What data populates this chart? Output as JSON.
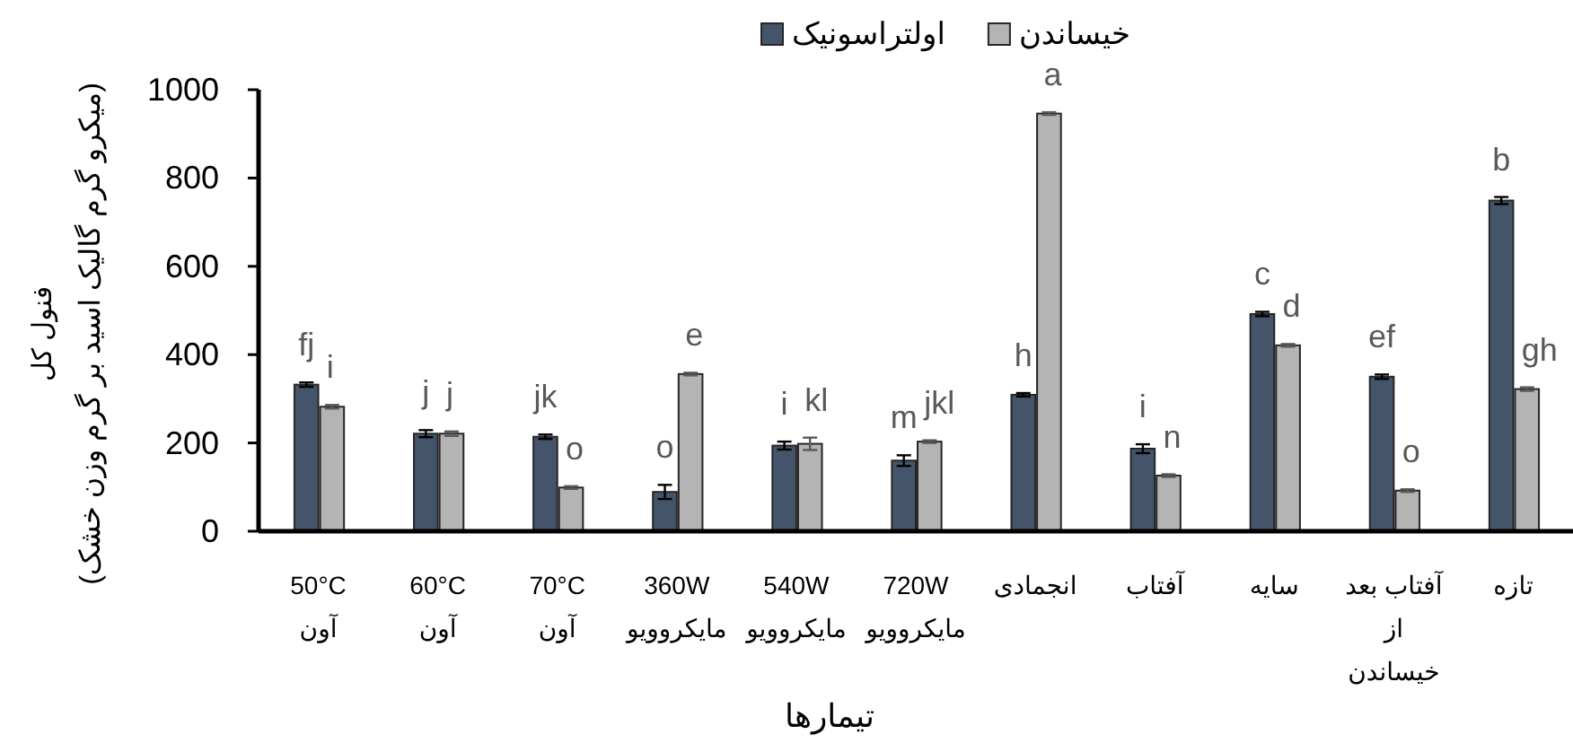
{
  "chart_data": {
    "type": "bar",
    "categories": [
      "50°C\nآون",
      "60°C\nآون",
      "70°C\nآون",
      "360W\nمایکروویو",
      "540W\nمایکروویو",
      "720W\nمایکروویو",
      "انجمادی",
      "آفتاب",
      "سایه",
      "آفتاب بعد\nاز\nخیساندن",
      "تازه"
    ],
    "series": [
      {
        "name": "اولتراسونیک",
        "color": "#44546a",
        "values": [
          332,
          221,
          214,
          89,
          194,
          160,
          309,
          187,
          492,
          350,
          749
        ],
        "errors": [
          5,
          8,
          5,
          16,
          9,
          12,
          4,
          10,
          5,
          5,
          8
        ],
        "value_labels": [
          "fj",
          "j",
          "jk",
          "o",
          "i",
          "m",
          "h",
          "i",
          "c",
          "ef",
          "b"
        ]
      },
      {
        "name": "خیساندن",
        "color": "#b4b4b4",
        "values": [
          282,
          221,
          99,
          356,
          198,
          203,
          946,
          126,
          421,
          92,
          322
        ],
        "errors": [
          4,
          5,
          3,
          3,
          14,
          3,
          3,
          3,
          3,
          3,
          4
        ],
        "value_labels": [
          "i",
          "j",
          "o",
          "e",
          "kl",
          "jkl",
          "a",
          "n",
          "d",
          "o",
          "gh"
        ]
      }
    ],
    "xlabel": "تیمارها",
    "ylabel": "فنول کل\n(میکرو گرم گالیک اسید بر گرم وزن خشک)",
    "ylim": [
      0,
      1000
    ],
    "yticks": [
      0,
      200,
      400,
      600,
      800,
      1000
    ],
    "legend": "top"
  }
}
